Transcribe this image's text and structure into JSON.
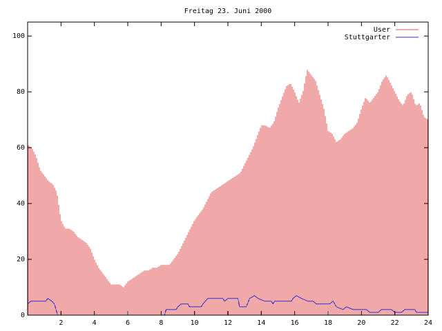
{
  "chart_data": {
    "type": "bar",
    "title": "Freitag 23. Juni 2000",
    "xlabel": "",
    "ylabel": "",
    "xlim": [
      0,
      24
    ],
    "ylim": [
      0,
      105
    ],
    "x_ticks": [
      2,
      4,
      6,
      8,
      10,
      12,
      14,
      16,
      18,
      20,
      22,
      24
    ],
    "y_ticks": [
      0,
      20,
      40,
      60,
      80,
      100
    ],
    "grid": false,
    "legend_position": "top-right",
    "series": [
      {
        "name": "User",
        "type": "bar",
        "color": "#e05050",
        "points": [
          [
            0.0,
            61
          ],
          [
            0.25,
            60
          ],
          [
            0.5,
            57
          ],
          [
            0.75,
            52
          ],
          [
            1.0,
            50
          ],
          [
            1.25,
            48
          ],
          [
            1.5,
            47
          ],
          [
            1.75,
            44
          ],
          [
            2.0,
            34
          ],
          [
            2.25,
            31
          ],
          [
            2.5,
            31
          ],
          [
            2.75,
            30
          ],
          [
            3.0,
            28
          ],
          [
            3.25,
            27
          ],
          [
            3.5,
            26
          ],
          [
            3.75,
            24
          ],
          [
            4.0,
            20
          ],
          [
            4.25,
            17
          ],
          [
            4.5,
            15
          ],
          [
            4.75,
            13
          ],
          [
            5.0,
            11
          ],
          [
            5.25,
            11
          ],
          [
            5.5,
            11
          ],
          [
            5.75,
            10
          ],
          [
            6.0,
            12
          ],
          [
            6.25,
            13
          ],
          [
            6.5,
            14
          ],
          [
            6.75,
            15
          ],
          [
            7.0,
            16
          ],
          [
            7.25,
            16
          ],
          [
            7.5,
            17
          ],
          [
            7.75,
            17
          ],
          [
            8.0,
            18
          ],
          [
            8.25,
            18
          ],
          [
            8.5,
            18
          ],
          [
            8.75,
            20
          ],
          [
            9.0,
            22
          ],
          [
            9.25,
            25
          ],
          [
            9.5,
            28
          ],
          [
            9.75,
            31
          ],
          [
            10.0,
            34
          ],
          [
            10.25,
            36
          ],
          [
            10.5,
            38
          ],
          [
            10.75,
            41
          ],
          [
            11.0,
            44
          ],
          [
            11.25,
            45
          ],
          [
            11.5,
            46
          ],
          [
            11.75,
            47
          ],
          [
            12.0,
            48
          ],
          [
            12.25,
            49
          ],
          [
            12.5,
            50
          ],
          [
            12.75,
            51
          ],
          [
            13.0,
            54
          ],
          [
            13.25,
            57
          ],
          [
            13.5,
            60
          ],
          [
            13.75,
            64
          ],
          [
            14.0,
            68
          ],
          [
            14.25,
            68
          ],
          [
            14.5,
            67
          ],
          [
            14.75,
            69
          ],
          [
            15.0,
            74
          ],
          [
            15.25,
            78
          ],
          [
            15.5,
            82
          ],
          [
            15.75,
            83
          ],
          [
            16.0,
            80
          ],
          [
            16.25,
            76
          ],
          [
            16.5,
            80
          ],
          [
            16.75,
            88
          ],
          [
            17.0,
            86
          ],
          [
            17.25,
            84
          ],
          [
            17.5,
            79
          ],
          [
            17.75,
            74
          ],
          [
            18.0,
            66
          ],
          [
            18.25,
            65
          ],
          [
            18.5,
            62
          ],
          [
            18.75,
            63
          ],
          [
            19.0,
            65
          ],
          [
            19.25,
            66
          ],
          [
            19.5,
            67
          ],
          [
            19.75,
            69
          ],
          [
            20.0,
            74
          ],
          [
            20.25,
            78
          ],
          [
            20.5,
            76
          ],
          [
            20.75,
            78
          ],
          [
            21.0,
            80
          ],
          [
            21.25,
            84
          ],
          [
            21.5,
            86
          ],
          [
            21.75,
            83
          ],
          [
            22.0,
            80
          ],
          [
            22.25,
            77
          ],
          [
            22.5,
            75
          ],
          [
            22.75,
            79
          ],
          [
            23.0,
            80
          ],
          [
            23.25,
            75
          ],
          [
            23.5,
            76
          ],
          [
            23.75,
            71
          ],
          [
            24.0,
            70
          ]
        ]
      },
      {
        "name": "Stuttgarter",
        "type": "line",
        "color": "#3030d0",
        "points": [
          [
            0.0,
            4
          ],
          [
            0.2,
            5
          ],
          [
            1.1,
            5
          ],
          [
            1.2,
            6
          ],
          [
            1.45,
            5
          ],
          [
            1.6,
            4
          ],
          [
            1.7,
            2
          ],
          [
            1.8,
            0
          ],
          [
            8.2,
            0
          ],
          [
            8.3,
            2
          ],
          [
            8.9,
            2
          ],
          [
            9.0,
            3
          ],
          [
            9.2,
            4
          ],
          [
            9.6,
            4
          ],
          [
            9.7,
            3
          ],
          [
            10.4,
            3
          ],
          [
            10.5,
            4
          ],
          [
            10.8,
            6
          ],
          [
            11.7,
            6
          ],
          [
            11.8,
            5
          ],
          [
            12.0,
            6
          ],
          [
            12.6,
            6
          ],
          [
            12.7,
            3
          ],
          [
            13.1,
            3
          ],
          [
            13.3,
            6
          ],
          [
            13.6,
            7
          ],
          [
            13.8,
            6
          ],
          [
            14.2,
            5
          ],
          [
            14.6,
            5
          ],
          [
            14.7,
            4
          ],
          [
            14.8,
            5
          ],
          [
            15.8,
            5
          ],
          [
            15.9,
            6
          ],
          [
            16.1,
            7
          ],
          [
            16.4,
            6
          ],
          [
            16.8,
            5
          ],
          [
            17.1,
            5
          ],
          [
            17.3,
            4
          ],
          [
            18.1,
            4
          ],
          [
            18.3,
            5
          ],
          [
            18.5,
            3
          ],
          [
            18.9,
            2
          ],
          [
            19.1,
            3
          ],
          [
            19.5,
            2
          ],
          [
            19.8,
            2
          ],
          [
            20.3,
            2
          ],
          [
            20.5,
            1
          ],
          [
            21.0,
            1
          ],
          [
            21.2,
            2
          ],
          [
            21.8,
            2
          ],
          [
            22.0,
            1
          ],
          [
            22.4,
            1
          ],
          [
            22.6,
            2
          ],
          [
            23.2,
            2
          ],
          [
            23.3,
            1
          ],
          [
            24.0,
            1
          ]
        ]
      }
    ]
  }
}
